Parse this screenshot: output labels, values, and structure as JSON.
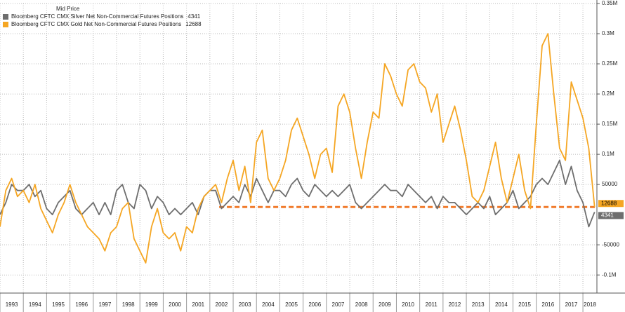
{
  "chart_data": {
    "type": "line",
    "legend_title": "Mid Price",
    "x": [
      1993,
      1993.25,
      1993.5,
      1993.75,
      1994,
      1994.25,
      1994.5,
      1994.75,
      1995,
      1995.25,
      1995.5,
      1995.75,
      1996,
      1996.25,
      1996.5,
      1996.75,
      1997,
      1997.25,
      1997.5,
      1997.75,
      1998,
      1998.25,
      1998.5,
      1998.75,
      1999,
      1999.25,
      1999.5,
      1999.75,
      2000,
      2000.25,
      2000.5,
      2000.75,
      2001,
      2001.25,
      2001.5,
      2001.75,
      2002,
      2002.25,
      2002.5,
      2002.75,
      2003,
      2003.25,
      2003.5,
      2003.75,
      2004,
      2004.25,
      2004.5,
      2004.75,
      2005,
      2005.25,
      2005.5,
      2005.75,
      2006,
      2006.25,
      2006.5,
      2006.75,
      2007,
      2007.25,
      2007.5,
      2007.75,
      2008,
      2008.25,
      2008.5,
      2008.75,
      2009,
      2009.25,
      2009.5,
      2009.75,
      2010,
      2010.25,
      2010.5,
      2010.75,
      2011,
      2011.25,
      2011.5,
      2011.75,
      2012,
      2012.25,
      2012.5,
      2012.75,
      2013,
      2013.25,
      2013.5,
      2013.75,
      2014,
      2014.25,
      2014.5,
      2014.75,
      2015,
      2015.25,
      2015.5,
      2015.75,
      2016,
      2016.25,
      2016.5,
      2016.75,
      2017,
      2017.25,
      2017.5,
      2017.75,
      2018,
      2018.25,
      2018.5
    ],
    "series": [
      {
        "name": "Bloomberg CFTC CMX Silver Net Non-Commercial Futures Positions",
        "color": "#6e6e6e",
        "values": [
          0,
          20000,
          50000,
          40000,
          40000,
          50000,
          30000,
          40000,
          10000,
          0,
          20000,
          30000,
          40000,
          10000,
          0,
          10000,
          20000,
          0,
          20000,
          0,
          40000,
          50000,
          20000,
          10000,
          50000,
          40000,
          10000,
          30000,
          20000,
          0,
          10000,
          0,
          10000,
          20000,
          0,
          30000,
          40000,
          40000,
          10000,
          20000,
          30000,
          20000,
          50000,
          30000,
          60000,
          40000,
          20000,
          40000,
          40000,
          30000,
          50000,
          60000,
          40000,
          30000,
          50000,
          40000,
          30000,
          40000,
          30000,
          40000,
          50000,
          20000,
          10000,
          20000,
          30000,
          40000,
          50000,
          40000,
          40000,
          30000,
          50000,
          40000,
          30000,
          20000,
          30000,
          10000,
          30000,
          20000,
          20000,
          10000,
          0,
          10000,
          20000,
          10000,
          30000,
          0,
          10000,
          20000,
          40000,
          10000,
          20000,
          30000,
          50000,
          60000,
          50000,
          70000,
          90000,
          50000,
          80000,
          40000,
          20000,
          -20000,
          4341
        ]
      },
      {
        "name": "Bloomberg CFTC CMX Gold Net Non-Commercial Futures Positions",
        "color": "#f5a623",
        "values": [
          -20000,
          40000,
          60000,
          30000,
          40000,
          20000,
          50000,
          10000,
          -10000,
          -30000,
          0,
          20000,
          50000,
          20000,
          0,
          -20000,
          -30000,
          -40000,
          -60000,
          -30000,
          -20000,
          10000,
          20000,
          -40000,
          -60000,
          -80000,
          -20000,
          10000,
          -30000,
          -40000,
          -30000,
          -60000,
          -20000,
          -30000,
          10000,
          30000,
          40000,
          50000,
          20000,
          60000,
          90000,
          40000,
          80000,
          20000,
          120000,
          140000,
          60000,
          40000,
          60000,
          90000,
          140000,
          160000,
          130000,
          100000,
          60000,
          100000,
          110000,
          70000,
          180000,
          200000,
          170000,
          110000,
          60000,
          120000,
          170000,
          160000,
          250000,
          230000,
          200000,
          180000,
          240000,
          250000,
          220000,
          210000,
          170000,
          200000,
          120000,
          150000,
          180000,
          140000,
          90000,
          30000,
          20000,
          40000,
          80000,
          120000,
          60000,
          20000,
          60000,
          100000,
          40000,
          10000,
          150000,
          280000,
          300000,
          200000,
          110000,
          90000,
          220000,
          190000,
          160000,
          110000,
          12688
        ]
      }
    ],
    "reference_line": {
      "y": 12688,
      "x_start": 2002.4,
      "color": "#f07b2c"
    },
    "xlim": [
      1993,
      2018.6
    ],
    "xticks": [
      1993,
      1994,
      1995,
      1996,
      1997,
      1998,
      1999,
      2000,
      2001,
      2002,
      2003,
      2004,
      2005,
      2006,
      2007,
      2008,
      2009,
      2010,
      2011,
      2012,
      2013,
      2014,
      2015,
      2016,
      2017,
      2018
    ],
    "ylim": [
      -130000,
      350000
    ],
    "yticks": [
      {
        "value": 350000,
        "label": "0.35M"
      },
      {
        "value": 300000,
        "label": "0.3M"
      },
      {
        "value": 250000,
        "label": "0.25M"
      },
      {
        "value": 200000,
        "label": "0.2M"
      },
      {
        "value": 150000,
        "label": "0.15M"
      },
      {
        "value": 100000,
        "label": "0.1M"
      },
      50000,
      -50000,
      {
        "value": -100000,
        "label": "-0.1M"
      }
    ],
    "grid": true
  }
}
